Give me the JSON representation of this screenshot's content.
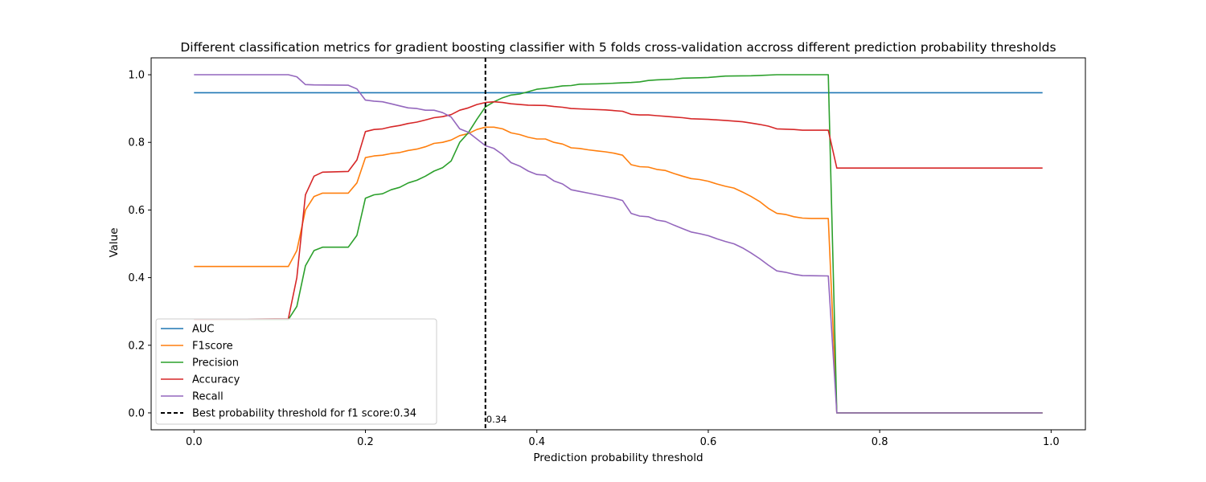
{
  "chart_data": {
    "type": "line",
    "title": "Different classification metrics for gradient boosting classifier with 5 folds cross-validation accross different prediction probability thresholds",
    "xlabel": "Prediction probability threshold",
    "ylabel": "Value",
    "xlim": [
      -0.05,
      1.04
    ],
    "ylim": [
      -0.05,
      1.05
    ],
    "xticks": [
      0.0,
      0.2,
      0.4,
      0.6,
      0.8,
      1.0
    ],
    "yticks": [
      0.0,
      0.2,
      0.4,
      0.6,
      0.8,
      1.0
    ],
    "xtick_labels": [
      "0.0",
      "0.2",
      "0.4",
      "0.6",
      "0.8",
      "1.0"
    ],
    "ytick_labels": [
      "0.0",
      "0.2",
      "0.4",
      "0.6",
      "0.8",
      "1.0"
    ],
    "grid": false,
    "legend_position": "lower-left",
    "vline": {
      "x": 0.34,
      "label": "Best probability threshold for f1 score:0.34",
      "annotation": "0.34",
      "color": "#000000"
    },
    "series": [
      {
        "name": "AUC",
        "color": "#1f77b4",
        "points": [
          [
            0.0,
            0.947
          ],
          [
            0.99,
            0.947
          ]
        ]
      },
      {
        "name": "F1score",
        "color": "#ff7f0e",
        "points": [
          [
            0.0,
            0.433
          ],
          [
            0.11,
            0.433
          ],
          [
            0.12,
            0.48
          ],
          [
            0.13,
            0.6
          ],
          [
            0.14,
            0.64
          ],
          [
            0.15,
            0.65
          ],
          [
            0.18,
            0.65
          ],
          [
            0.19,
            0.68
          ],
          [
            0.2,
            0.755
          ],
          [
            0.21,
            0.76
          ],
          [
            0.22,
            0.762
          ],
          [
            0.23,
            0.767
          ],
          [
            0.24,
            0.77
          ],
          [
            0.25,
            0.776
          ],
          [
            0.26,
            0.78
          ],
          [
            0.27,
            0.787
          ],
          [
            0.28,
            0.797
          ],
          [
            0.29,
            0.8
          ],
          [
            0.3,
            0.807
          ],
          [
            0.31,
            0.82
          ],
          [
            0.32,
            0.826
          ],
          [
            0.33,
            0.838
          ],
          [
            0.34,
            0.845
          ],
          [
            0.35,
            0.845
          ],
          [
            0.36,
            0.84
          ],
          [
            0.37,
            0.828
          ],
          [
            0.38,
            0.823
          ],
          [
            0.39,
            0.815
          ],
          [
            0.4,
            0.81
          ],
          [
            0.41,
            0.81
          ],
          [
            0.42,
            0.8
          ],
          [
            0.43,
            0.795
          ],
          [
            0.44,
            0.784
          ],
          [
            0.45,
            0.782
          ],
          [
            0.46,
            0.778
          ],
          [
            0.47,
            0.775
          ],
          [
            0.48,
            0.772
          ],
          [
            0.49,
            0.768
          ],
          [
            0.5,
            0.762
          ],
          [
            0.51,
            0.734
          ],
          [
            0.52,
            0.728
          ],
          [
            0.53,
            0.727
          ],
          [
            0.54,
            0.72
          ],
          [
            0.55,
            0.717
          ],
          [
            0.56,
            0.708
          ],
          [
            0.57,
            0.7
          ],
          [
            0.58,
            0.693
          ],
          [
            0.59,
            0.69
          ],
          [
            0.6,
            0.685
          ],
          [
            0.61,
            0.677
          ],
          [
            0.62,
            0.67
          ],
          [
            0.63,
            0.665
          ],
          [
            0.64,
            0.653
          ],
          [
            0.65,
            0.64
          ],
          [
            0.66,
            0.625
          ],
          [
            0.67,
            0.605
          ],
          [
            0.68,
            0.59
          ],
          [
            0.69,
            0.587
          ],
          [
            0.7,
            0.58
          ],
          [
            0.71,
            0.576
          ],
          [
            0.72,
            0.575
          ],
          [
            0.73,
            0.575
          ],
          [
            0.74,
            0.575
          ],
          [
            0.75,
            0.0
          ],
          [
            0.99,
            0.0
          ]
        ]
      },
      {
        "name": "Precision",
        "color": "#2ca02c",
        "points": [
          [
            0.0,
            0.276
          ],
          [
            0.11,
            0.276
          ],
          [
            0.12,
            0.315
          ],
          [
            0.13,
            0.435
          ],
          [
            0.14,
            0.48
          ],
          [
            0.15,
            0.49
          ],
          [
            0.18,
            0.49
          ],
          [
            0.19,
            0.525
          ],
          [
            0.2,
            0.635
          ],
          [
            0.21,
            0.645
          ],
          [
            0.22,
            0.648
          ],
          [
            0.23,
            0.66
          ],
          [
            0.24,
            0.667
          ],
          [
            0.25,
            0.68
          ],
          [
            0.26,
            0.688
          ],
          [
            0.27,
            0.7
          ],
          [
            0.28,
            0.715
          ],
          [
            0.29,
            0.725
          ],
          [
            0.3,
            0.745
          ],
          [
            0.31,
            0.8
          ],
          [
            0.32,
            0.828
          ],
          [
            0.33,
            0.868
          ],
          [
            0.34,
            0.905
          ],
          [
            0.35,
            0.92
          ],
          [
            0.36,
            0.932
          ],
          [
            0.37,
            0.94
          ],
          [
            0.38,
            0.943
          ],
          [
            0.39,
            0.95
          ],
          [
            0.4,
            0.957
          ],
          [
            0.41,
            0.96
          ],
          [
            0.42,
            0.963
          ],
          [
            0.43,
            0.967
          ],
          [
            0.44,
            0.968
          ],
          [
            0.45,
            0.972
          ],
          [
            0.47,
            0.973
          ],
          [
            0.49,
            0.975
          ],
          [
            0.5,
            0.976
          ],
          [
            0.51,
            0.977
          ],
          [
            0.52,
            0.979
          ],
          [
            0.53,
            0.983
          ],
          [
            0.54,
            0.985
          ],
          [
            0.56,
            0.987
          ],
          [
            0.57,
            0.99
          ],
          [
            0.59,
            0.991
          ],
          [
            0.6,
            0.992
          ],
          [
            0.61,
            0.994
          ],
          [
            0.62,
            0.996
          ],
          [
            0.65,
            0.997
          ],
          [
            0.66,
            0.998
          ],
          [
            0.68,
            1.0
          ],
          [
            0.74,
            1.0
          ],
          [
            0.75,
            0.0
          ],
          [
            0.99,
            0.0
          ]
        ]
      },
      {
        "name": "Accuracy",
        "color": "#d62728",
        "points": [
          [
            0.0,
            0.276
          ],
          [
            0.11,
            0.278
          ],
          [
            0.12,
            0.4
          ],
          [
            0.13,
            0.645
          ],
          [
            0.14,
            0.7
          ],
          [
            0.15,
            0.712
          ],
          [
            0.18,
            0.714
          ],
          [
            0.19,
            0.748
          ],
          [
            0.2,
            0.832
          ],
          [
            0.21,
            0.838
          ],
          [
            0.22,
            0.84
          ],
          [
            0.23,
            0.846
          ],
          [
            0.24,
            0.85
          ],
          [
            0.25,
            0.856
          ],
          [
            0.26,
            0.86
          ],
          [
            0.27,
            0.866
          ],
          [
            0.28,
            0.873
          ],
          [
            0.29,
            0.876
          ],
          [
            0.3,
            0.882
          ],
          [
            0.31,
            0.895
          ],
          [
            0.32,
            0.902
          ],
          [
            0.33,
            0.912
          ],
          [
            0.34,
            0.918
          ],
          [
            0.35,
            0.92
          ],
          [
            0.36,
            0.918
          ],
          [
            0.37,
            0.914
          ],
          [
            0.38,
            0.912
          ],
          [
            0.39,
            0.91
          ],
          [
            0.41,
            0.909
          ],
          [
            0.42,
            0.906
          ],
          [
            0.43,
            0.904
          ],
          [
            0.44,
            0.9
          ],
          [
            0.46,
            0.898
          ],
          [
            0.48,
            0.896
          ],
          [
            0.5,
            0.892
          ],
          [
            0.51,
            0.883
          ],
          [
            0.52,
            0.881
          ],
          [
            0.53,
            0.881
          ],
          [
            0.54,
            0.879
          ],
          [
            0.55,
            0.877
          ],
          [
            0.56,
            0.875
          ],
          [
            0.57,
            0.873
          ],
          [
            0.58,
            0.87
          ],
          [
            0.6,
            0.868
          ],
          [
            0.62,
            0.865
          ],
          [
            0.64,
            0.861
          ],
          [
            0.65,
            0.857
          ],
          [
            0.66,
            0.853
          ],
          [
            0.67,
            0.848
          ],
          [
            0.68,
            0.84
          ],
          [
            0.7,
            0.838
          ],
          [
            0.71,
            0.836
          ],
          [
            0.74,
            0.836
          ],
          [
            0.75,
            0.724
          ],
          [
            0.99,
            0.724
          ]
        ]
      },
      {
        "name": "Recall",
        "color": "#9467bd",
        "points": [
          [
            0.0,
            1.0
          ],
          [
            0.11,
            1.0
          ],
          [
            0.12,
            0.994
          ],
          [
            0.13,
            0.971
          ],
          [
            0.14,
            0.97
          ],
          [
            0.18,
            0.969
          ],
          [
            0.19,
            0.958
          ],
          [
            0.2,
            0.925
          ],
          [
            0.21,
            0.922
          ],
          [
            0.22,
            0.92
          ],
          [
            0.23,
            0.914
          ],
          [
            0.24,
            0.908
          ],
          [
            0.25,
            0.902
          ],
          [
            0.26,
            0.9
          ],
          [
            0.27,
            0.895
          ],
          [
            0.28,
            0.895
          ],
          [
            0.29,
            0.888
          ],
          [
            0.3,
            0.875
          ],
          [
            0.31,
            0.84
          ],
          [
            0.32,
            0.83
          ],
          [
            0.33,
            0.81
          ],
          [
            0.34,
            0.79
          ],
          [
            0.35,
            0.782
          ],
          [
            0.36,
            0.764
          ],
          [
            0.37,
            0.74
          ],
          [
            0.38,
            0.73
          ],
          [
            0.39,
            0.715
          ],
          [
            0.4,
            0.705
          ],
          [
            0.41,
            0.703
          ],
          [
            0.42,
            0.686
          ],
          [
            0.43,
            0.677
          ],
          [
            0.44,
            0.66
          ],
          [
            0.45,
            0.655
          ],
          [
            0.46,
            0.65
          ],
          [
            0.47,
            0.645
          ],
          [
            0.48,
            0.64
          ],
          [
            0.49,
            0.635
          ],
          [
            0.5,
            0.628
          ],
          [
            0.51,
            0.59
          ],
          [
            0.52,
            0.582
          ],
          [
            0.53,
            0.58
          ],
          [
            0.54,
            0.57
          ],
          [
            0.55,
            0.566
          ],
          [
            0.56,
            0.555
          ],
          [
            0.57,
            0.545
          ],
          [
            0.58,
            0.535
          ],
          [
            0.59,
            0.53
          ],
          [
            0.6,
            0.524
          ],
          [
            0.61,
            0.515
          ],
          [
            0.62,
            0.507
          ],
          [
            0.63,
            0.5
          ],
          [
            0.64,
            0.488
          ],
          [
            0.65,
            0.473
          ],
          [
            0.66,
            0.456
          ],
          [
            0.67,
            0.437
          ],
          [
            0.68,
            0.42
          ],
          [
            0.69,
            0.416
          ],
          [
            0.7,
            0.41
          ],
          [
            0.71,
            0.406
          ],
          [
            0.74,
            0.405
          ],
          [
            0.75,
            0.0
          ],
          [
            0.99,
            0.0
          ]
        ]
      }
    ]
  }
}
